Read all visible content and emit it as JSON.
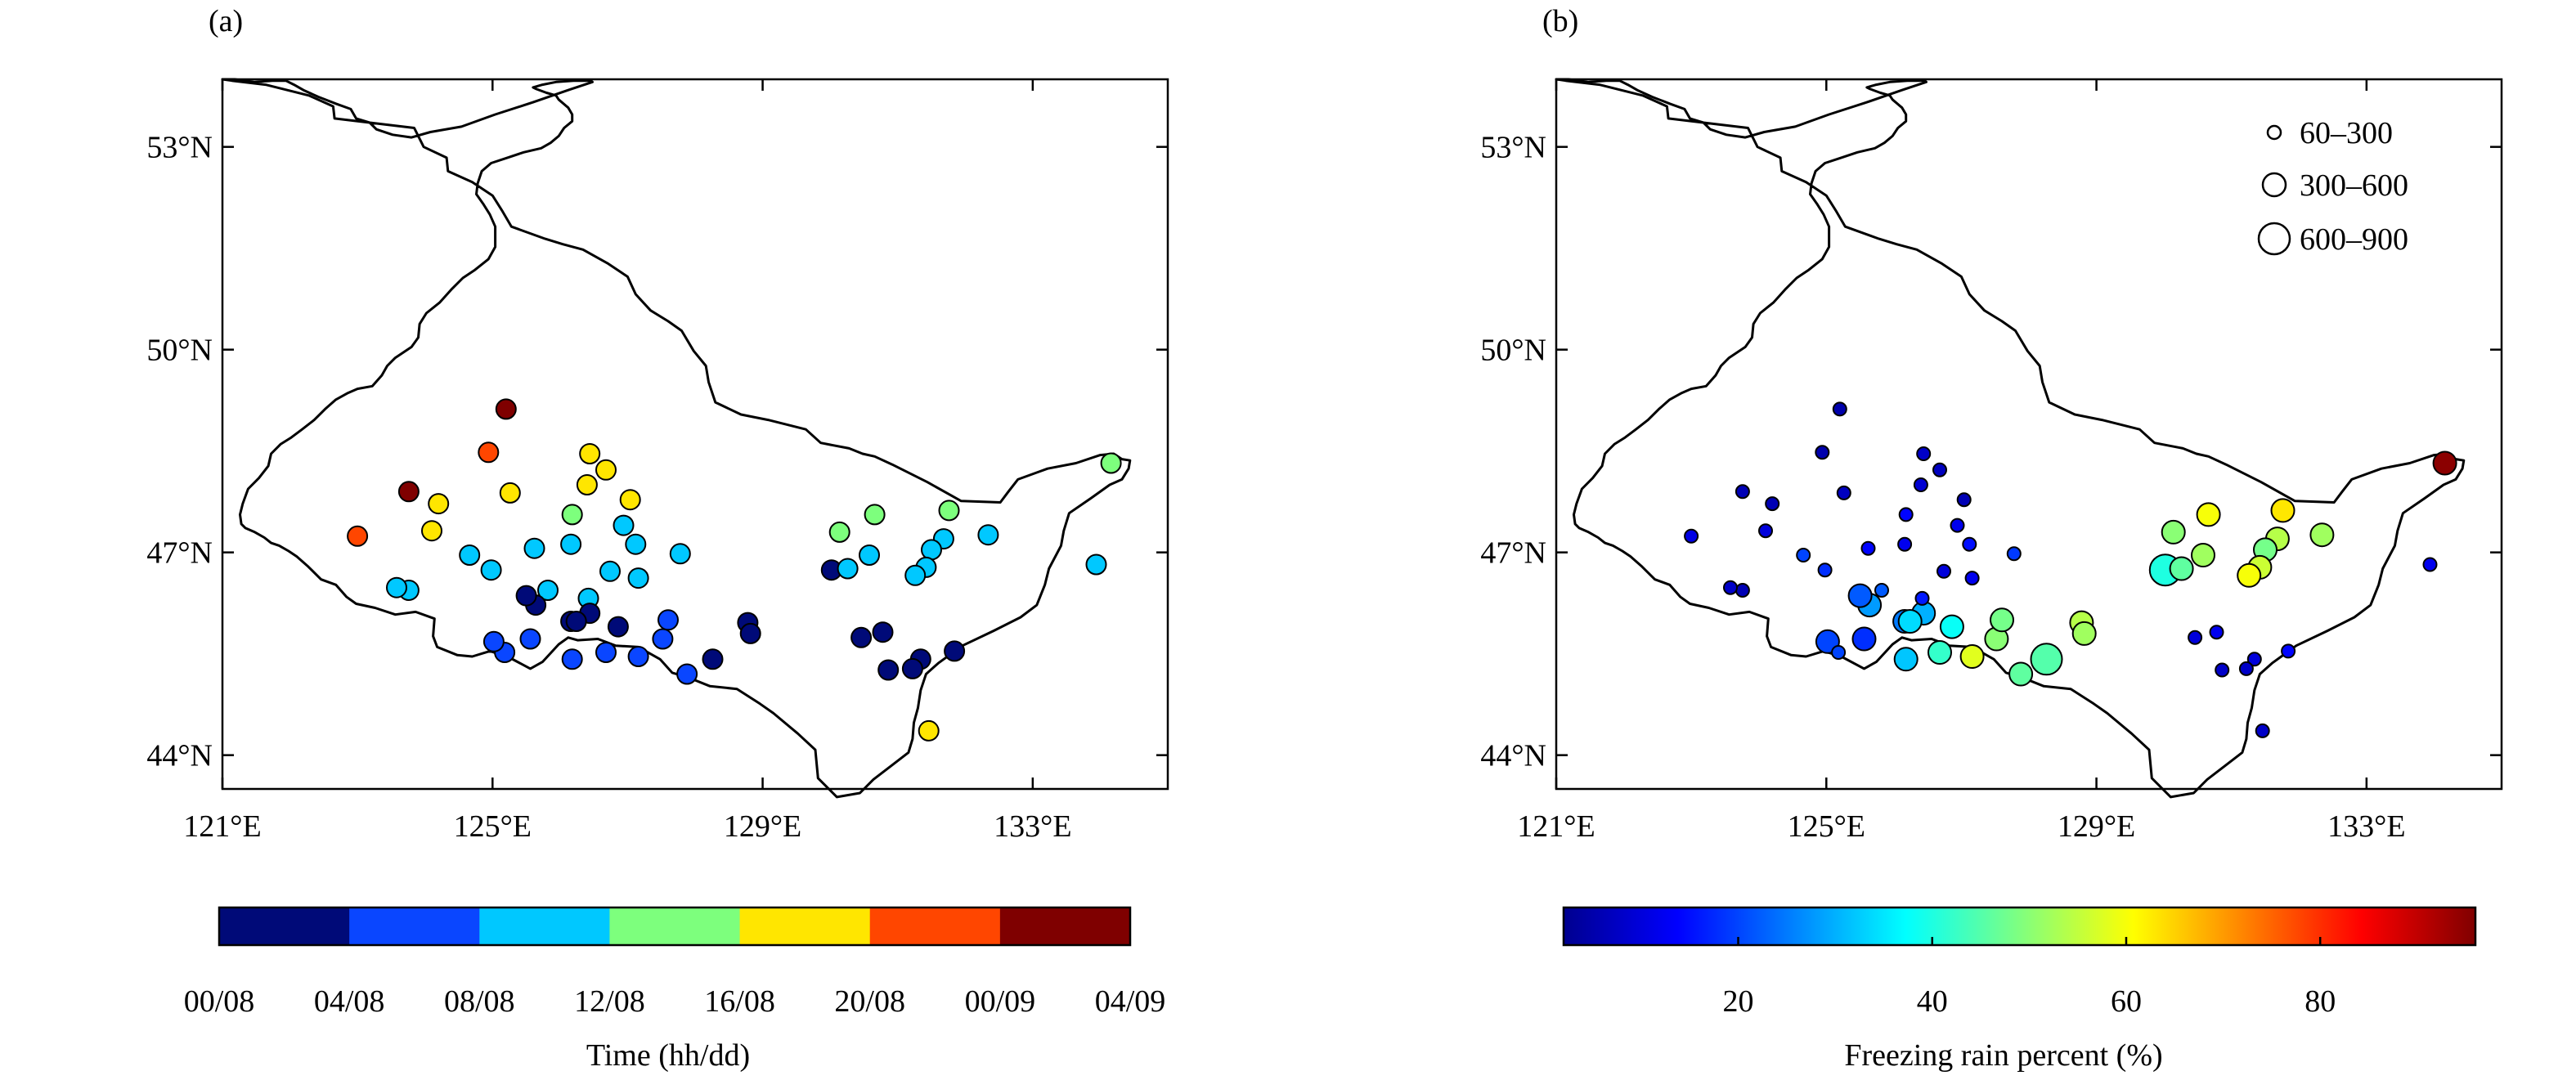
{
  "panel_a": {
    "label": "(a)",
    "lon_ticks": [
      "121°E",
      "125°E",
      "129°E",
      "133°E"
    ],
    "lat_ticks": [
      "44°N",
      "47°N",
      "50°N",
      "53°N"
    ],
    "colorbar": {
      "colors": [
        "#000a78",
        "#0a46ff",
        "#00c8ff",
        "#7dff7d",
        "#ffe600",
        "#ff4600",
        "#7f0000"
      ],
      "tick_labels": [
        "00/08",
        "04/08",
        "08/08",
        "12/08",
        "16/08",
        "20/08",
        "00/09",
        "04/09"
      ],
      "title": "Time (hh/dd)"
    }
  },
  "panel_b": {
    "label": "(b)",
    "lon_ticks": [
      "121°E",
      "125°E",
      "129°E",
      "133°E"
    ],
    "lat_ticks": [
      "44°N",
      "47°N",
      "50°N",
      "53°N"
    ],
    "legend": {
      "sizes": [
        {
          "label": "60–300"
        },
        {
          "label": "300–600"
        },
        {
          "label": "600–900"
        }
      ]
    },
    "colorbar": {
      "colormap": "jet",
      "range": [
        2,
        96
      ],
      "tick_values": [
        20,
        40,
        60,
        80
      ],
      "tick_labels": [
        "20",
        "40",
        "60",
        "80"
      ],
      "title": "Freezing rain percent (%)"
    }
  },
  "map_extent": {
    "lon": [
      121,
      135
    ],
    "lat": [
      43.5,
      54
    ]
  },
  "border_outline": {
    "lon": [
      121.0,
      121.14,
      121.64,
      121.96,
      122.28,
      122.64,
      122.66,
      123.84,
      123.98,
      124.32,
      124.34,
      124.7,
      125.0,
      125.14,
      125.28,
      125.78,
      126.04,
      126.34,
      126.7,
      127.0,
      127.12,
      127.34,
      127.6,
      127.8,
      127.98,
      128.16,
      128.2,
      128.3,
      128.68,
      129.08,
      129.64,
      129.86,
      130.28,
      130.48,
      130.66,
      130.92,
      131.44,
      131.94,
      132.52,
      132.64,
      132.78,
      133.22,
      133.64,
      134.0,
      134.2,
      134.32,
      134.44,
      134.42,
      134.32,
      134.14,
      133.86,
      133.54,
      133.46,
      133.42,
      133.24,
      133.18,
      133.06,
      132.82,
      132.42,
      131.96,
      131.6,
      131.42,
      131.34,
      131.3,
      131.24,
      131.22,
      131.16,
      130.9,
      130.64,
      130.44,
      130.1,
      129.82,
      129.78,
      129.52,
      129.16,
      128.96,
      128.62,
      128.22,
      127.92,
      127.66,
      127.48,
      127.16,
      126.82,
      126.56,
      126.26,
      126.12,
      125.98,
      125.74,
      125.56,
      125.22,
      124.96,
      124.7,
      124.48,
      124.18,
      124.12,
      124.14,
      123.86,
      123.56,
      123.26,
      122.98,
      122.84,
      122.68,
      122.46,
      122.26,
      122.1,
      121.98,
      121.84,
      121.72,
      121.62,
      121.48,
      121.34,
      121.28,
      121.26,
      121.3,
      121.38,
      121.54,
      121.68,
      121.72,
      121.86,
      122.02,
      122.18,
      122.36,
      122.52,
      122.68,
      122.86,
      123.0,
      123.22,
      123.36,
      123.44,
      123.56,
      123.8,
      123.9,
      123.92,
      124.02,
      124.22,
      124.4,
      124.56,
      124.74,
      124.94,
      125.04,
      125.04,
      125.04,
      124.96,
      124.86,
      124.76,
      124.78,
      124.84,
      124.98,
      125.22,
      125.46,
      125.72,
      125.86,
      125.98,
      126.06,
      126.18,
      126.18,
      126.12,
      125.98,
      125.94,
      125.8,
      125.64,
      125.6,
      125.74,
      125.94,
      126.2,
      126.46,
      126.48,
      126.12,
      125.6,
      125.04,
      124.54,
      124.08,
      123.8,
      123.52,
      123.28,
      123.18,
      122.98,
      122.9,
      122.68,
      122.42,
      122.2,
      122.06,
      121.94,
      121.74,
      121.48,
      121.18,
      121.0
    ],
    "lat": [
      54.0,
      53.98,
      53.92,
      53.84,
      53.76,
      53.6,
      53.42,
      53.28,
      53.0,
      52.84,
      52.64,
      52.48,
      52.28,
      52.06,
      51.82,
      51.64,
      51.56,
      51.48,
      51.28,
      51.08,
      50.82,
      50.58,
      50.42,
      50.28,
      49.98,
      49.76,
      49.52,
      49.22,
      49.04,
      48.96,
      48.82,
      48.62,
      48.54,
      48.46,
      48.42,
      48.3,
      48.04,
      47.76,
      47.74,
      47.9,
      48.08,
      48.24,
      48.32,
      48.44,
      48.46,
      48.38,
      48.36,
      48.24,
      48.08,
      48.0,
      47.8,
      47.58,
      47.32,
      47.1,
      46.76,
      46.52,
      46.22,
      46.04,
      45.84,
      45.62,
      45.36,
      45.2,
      44.96,
      44.7,
      44.48,
      44.24,
      44.04,
      43.84,
      43.64,
      43.44,
      43.38,
      43.66,
      44.08,
      44.32,
      44.62,
      44.76,
      44.98,
      45.02,
      45.14,
      45.22,
      45.42,
      45.6,
      45.62,
      45.72,
      45.7,
      45.74,
      45.64,
      45.38,
      45.28,
      45.46,
      45.54,
      45.46,
      45.48,
      45.6,
      45.76,
      46.02,
      46.12,
      46.08,
      46.18,
      46.24,
      46.34,
      46.52,
      46.6,
      46.8,
      46.94,
      47.02,
      47.1,
      47.14,
      47.22,
      47.3,
      47.36,
      47.42,
      47.56,
      47.72,
      47.94,
      48.1,
      48.28,
      48.46,
      48.6,
      48.7,
      48.82,
      48.96,
      49.12,
      49.26,
      49.36,
      49.42,
      49.46,
      49.62,
      49.76,
      49.88,
      50.04,
      50.18,
      50.38,
      50.54,
      50.7,
      50.9,
      51.06,
      51.18,
      51.34,
      51.52,
      51.66,
      51.82,
      52.0,
      52.16,
      52.3,
      52.46,
      52.64,
      52.76,
      52.84,
      52.92,
      52.98,
      53.06,
      53.16,
      53.28,
      53.38,
      53.48,
      53.58,
      53.7,
      53.76,
      53.8,
      53.86,
      53.88,
      53.92,
      53.96,
      53.98,
      53.98,
      53.96,
      53.84,
      53.66,
      53.48,
      53.3,
      53.22,
      53.14,
      53.18,
      53.26,
      53.36,
      53.42,
      53.56,
      53.64,
      53.74,
      53.84,
      53.92,
      53.98,
      53.98,
      53.96,
      54.0
    ]
  },
  "stations": {
    "lon": [
      125.2,
      123.76,
      124.94,
      126.44,
      126.68,
      126.4,
      124.2,
      125.26,
      127.04,
      126.18,
      125.62,
      126.16,
      123.0,
      124.1,
      123.76,
      124.66,
      124.98,
      126.94,
      127.12,
      126.74,
      125.82,
      127.78,
      127.16,
      126.42,
      123.58,
      125.18,
      125.56,
      125.02,
      126.16,
      126.44,
      126.86,
      126.68,
      126.18,
      127.52,
      127.6,
      128.78,
      128.82,
      128.26,
      127.88,
      127.16,
      126.24,
      125.64,
      125.5,
      130.66,
      131.76,
      134.16,
      130.14,
      132.34,
      131.68,
      131.5,
      130.02,
      130.26,
      130.58,
      131.42,
      131.26,
      130.46,
      130.78,
      131.34,
      131.84,
      130.86,
      131.22,
      131.46,
      133.94
    ],
    "lat": [
      49.12,
      47.9,
      48.48,
      48.46,
      48.22,
      48.0,
      47.72,
      47.88,
      47.78,
      47.56,
      47.06,
      47.12,
      47.24,
      47.32,
      46.44,
      46.96,
      46.74,
      47.4,
      47.12,
      46.72,
      46.44,
      46.98,
      46.62,
      46.32,
      46.48,
      45.52,
      45.72,
      45.68,
      45.98,
      46.1,
      45.9,
      45.52,
      45.42,
      45.72,
      46.0,
      45.96,
      45.8,
      45.42,
      45.2,
      45.46,
      45.98,
      46.22,
      46.36,
      47.56,
      47.62,
      48.32,
      47.3,
      47.26,
      47.2,
      47.04,
      46.74,
      46.76,
      46.96,
      46.78,
      46.66,
      45.74,
      45.82,
      45.42,
      45.54,
      45.26,
      45.28,
      44.36,
      46.82
    ],
    "time_class": [
      6,
      6,
      5,
      4,
      4,
      4,
      4,
      4,
      4,
      3,
      2,
      2,
      5,
      4,
      2,
      2,
      2,
      2,
      2,
      2,
      2,
      2,
      2,
      2,
      2,
      1,
      1,
      1,
      0,
      0,
      0,
      1,
      1,
      1,
      1,
      0,
      0,
      0,
      1,
      1,
      0,
      0,
      0,
      3,
      3,
      3,
      3,
      2,
      2,
      2,
      0,
      2,
      2,
      2,
      2,
      0,
      0,
      0,
      0,
      0,
      0,
      4,
      2
    ],
    "freezing_rain_percent": [
      5,
      6,
      5,
      8,
      7,
      9,
      6,
      7,
      6,
      14,
      14,
      12,
      11,
      10,
      6,
      20,
      18,
      12,
      15,
      10,
      22,
      19,
      12,
      16,
      8,
      20,
      18,
      20,
      25,
      30,
      38,
      42,
      32,
      50,
      48,
      54,
      52,
      45,
      46,
      58,
      34,
      28,
      22,
      60,
      63,
      95,
      50,
      52,
      54,
      48,
      40,
      46,
      52,
      56,
      60,
      10,
      12,
      10,
      14,
      8,
      8,
      8,
      12
    ],
    "size_class": [
      1,
      1,
      1,
      1,
      1,
      1,
      1,
      1,
      1,
      1,
      1,
      1,
      1,
      1,
      1,
      1,
      1,
      1,
      1,
      1,
      1,
      1,
      1,
      1,
      1,
      1,
      2,
      2,
      2,
      2,
      2,
      2,
      2,
      2,
      2,
      2,
      2,
      3,
      2,
      2,
      2,
      2,
      2,
      2,
      2,
      2,
      2,
      2,
      2,
      2,
      3,
      2,
      2,
      2,
      2,
      1,
      1,
      1,
      1,
      1,
      1,
      1,
      1
    ]
  }
}
